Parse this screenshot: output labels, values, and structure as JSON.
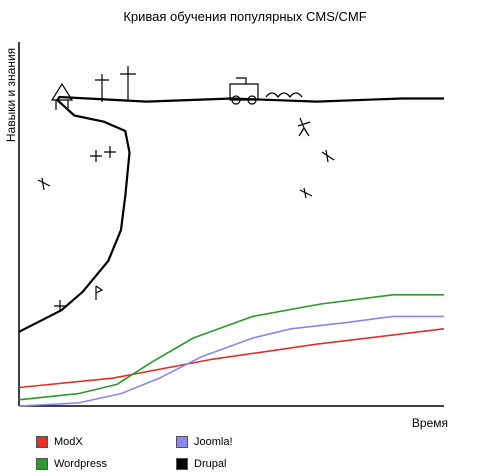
{
  "chart_data": {
    "type": "line",
    "title": "Кривая обучения популярных CMS/CMF",
    "xlabel": "Время",
    "ylabel": "Навыки и знания",
    "xlim": [
      0,
      100
    ],
    "ylim": [
      0,
      100
    ],
    "grid": false,
    "legend_position": "bottom",
    "series": [
      {
        "name": "ModX",
        "color": "#e0302a",
        "x": [
          0,
          22,
          45,
          70,
          100
        ],
        "y": [
          6,
          9,
          15,
          20,
          25
        ]
      },
      {
        "name": "Wordpress",
        "color": "#2a9a28",
        "x": [
          0,
          14,
          23,
          31,
          41,
          55,
          71,
          88,
          100
        ],
        "y": [
          2,
          4,
          7,
          14,
          22,
          29,
          33,
          36,
          36
        ]
      },
      {
        "name": "Joomla!",
        "color": "#8888ee",
        "x": [
          0,
          14,
          24,
          33,
          43,
          55,
          64,
          77,
          88,
          100
        ],
        "y": [
          0,
          1,
          4,
          9,
          16,
          22,
          25,
          27,
          29,
          29
        ]
      },
      {
        "name": "Drupal",
        "color": "#000000",
        "x": [
          0,
          10,
          15,
          21,
          24,
          25,
          26,
          25,
          20,
          13,
          9,
          9.5,
          30,
          50,
          70,
          90,
          100
        ],
        "y": [
          24,
          31,
          37,
          47,
          57,
          68,
          82,
          89,
          92,
          94,
          99,
          100,
          98.5,
          99.5,
          98.5,
          99.5,
          99.5
        ]
      }
    ],
    "legend": [
      {
        "name": "ModX",
        "color": "#e0302a"
      },
      {
        "name": "Joomla!",
        "color": "#8888ee"
      },
      {
        "name": "Wordpress",
        "color": "#2a9a28"
      },
      {
        "name": "Drupal",
        "color": "#000000"
      }
    ]
  }
}
